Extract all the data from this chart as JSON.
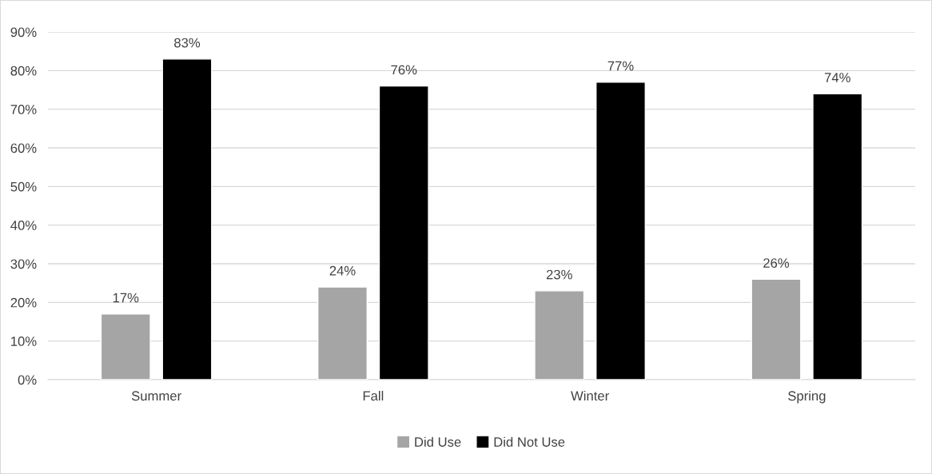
{
  "chart_data": {
    "type": "bar",
    "categories": [
      "Summer",
      "Fall",
      "Winter",
      "Spring"
    ],
    "series": [
      {
        "name": "Did Use",
        "color": "#a5a5a5",
        "values": [
          17,
          24,
          23,
          26
        ],
        "value_labels": [
          "17%",
          "24%",
          "23%",
          "26%"
        ]
      },
      {
        "name": "Did Not Use",
        "color": "#000000",
        "values": [
          83,
          76,
          77,
          74
        ],
        "value_labels": [
          "83%",
          "76%",
          "77%",
          "74%"
        ]
      }
    ],
    "ylim": [
      0,
      90
    ],
    "yticks": [
      {
        "value": 0,
        "label": "0%"
      },
      {
        "value": 10,
        "label": "10%"
      },
      {
        "value": 20,
        "label": "20%"
      },
      {
        "value": 30,
        "label": "30%"
      },
      {
        "value": 40,
        "label": "40%"
      },
      {
        "value": 50,
        "label": "50%"
      },
      {
        "value": 60,
        "label": "60%"
      },
      {
        "value": 70,
        "label": "70%"
      },
      {
        "value": 80,
        "label": "80%"
      },
      {
        "value": 90,
        "label": "90%"
      }
    ],
    "grid": "y",
    "legend": "bottom"
  }
}
